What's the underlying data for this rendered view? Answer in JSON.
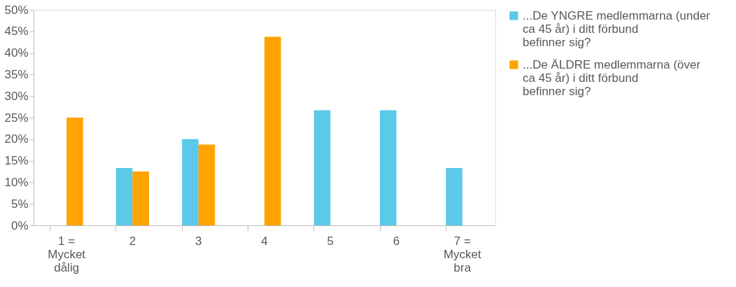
{
  "chart_data": {
    "type": "bar",
    "categories": [
      "1 =\nMycket\ndålig",
      "2",
      "3",
      "4",
      "5",
      "6",
      "7 =\nMycket\nbra"
    ],
    "series": [
      {
        "name": "...De YNGRE medlemmarna (under ca 45 år) i ditt förbund befinner sig?",
        "color": "#5bc9e9",
        "values": [
          0,
          13.3,
          20,
          0,
          26.7,
          26.7,
          13.3
        ]
      },
      {
        "name": "...De ÄLDRE medlemmarna (över ca 45 år) i ditt förbund befinner sig?",
        "color": "#ffa300",
        "values": [
          25,
          12.5,
          18.75,
          43.75,
          0,
          0,
          0
        ]
      }
    ],
    "ylim": [
      0,
      50
    ],
    "yticks": [
      {
        "value": 0,
        "label": "0%"
      },
      {
        "value": 5,
        "label": "5%"
      },
      {
        "value": 10,
        "label": "10%"
      },
      {
        "value": 15,
        "label": "15%"
      },
      {
        "value": 20,
        "label": "20%"
      },
      {
        "value": 25,
        "label": "25%"
      },
      {
        "value": 30,
        "label": "30%"
      },
      {
        "value": 35,
        "label": "35%"
      },
      {
        "value": 40,
        "label": "40%"
      },
      {
        "value": 45,
        "label": "45%"
      },
      {
        "value": 50,
        "label": "50%"
      }
    ],
    "grid": false,
    "legend": "right"
  }
}
